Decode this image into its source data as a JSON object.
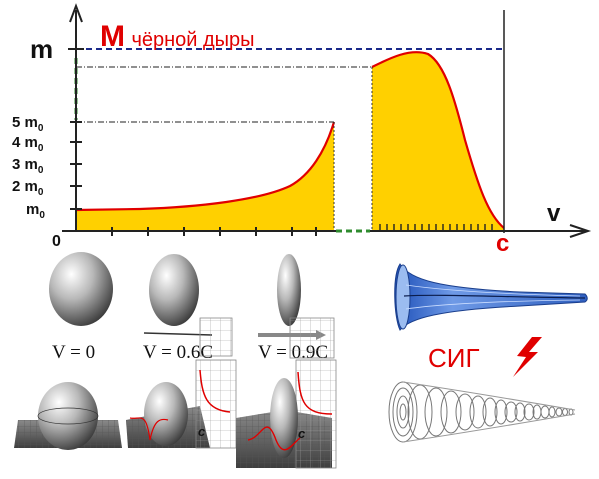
{
  "diagram": {
    "axis": {
      "y_label": "m",
      "x_label": "v",
      "origin_label": "0",
      "c_label": "c",
      "ticks": [
        "5 m",
        "4 m",
        "3 m",
        "2 m",
        "m"
      ],
      "tick_subscript": "0"
    },
    "black_hole": {
      "letter": "M",
      "caption": "чёрной дыры"
    },
    "velocities": [
      {
        "label": "V = 0"
      },
      {
        "label": "V = 0.6C"
      },
      {
        "label": "V = 0.9C"
      }
    ],
    "grid_c_label": "c",
    "sig": {
      "label": "СИГ"
    },
    "colors": {
      "fill": "#FFD000",
      "curve": "#E00000",
      "accent_red": "#E00000",
      "dashed_blue": "#1A2A8A",
      "dashed_green": "#2E8B2E",
      "funnel_blue": "#3A6FD0"
    },
    "icons": [
      "lightning-bolt-icon",
      "arrow-right-icon"
    ]
  }
}
